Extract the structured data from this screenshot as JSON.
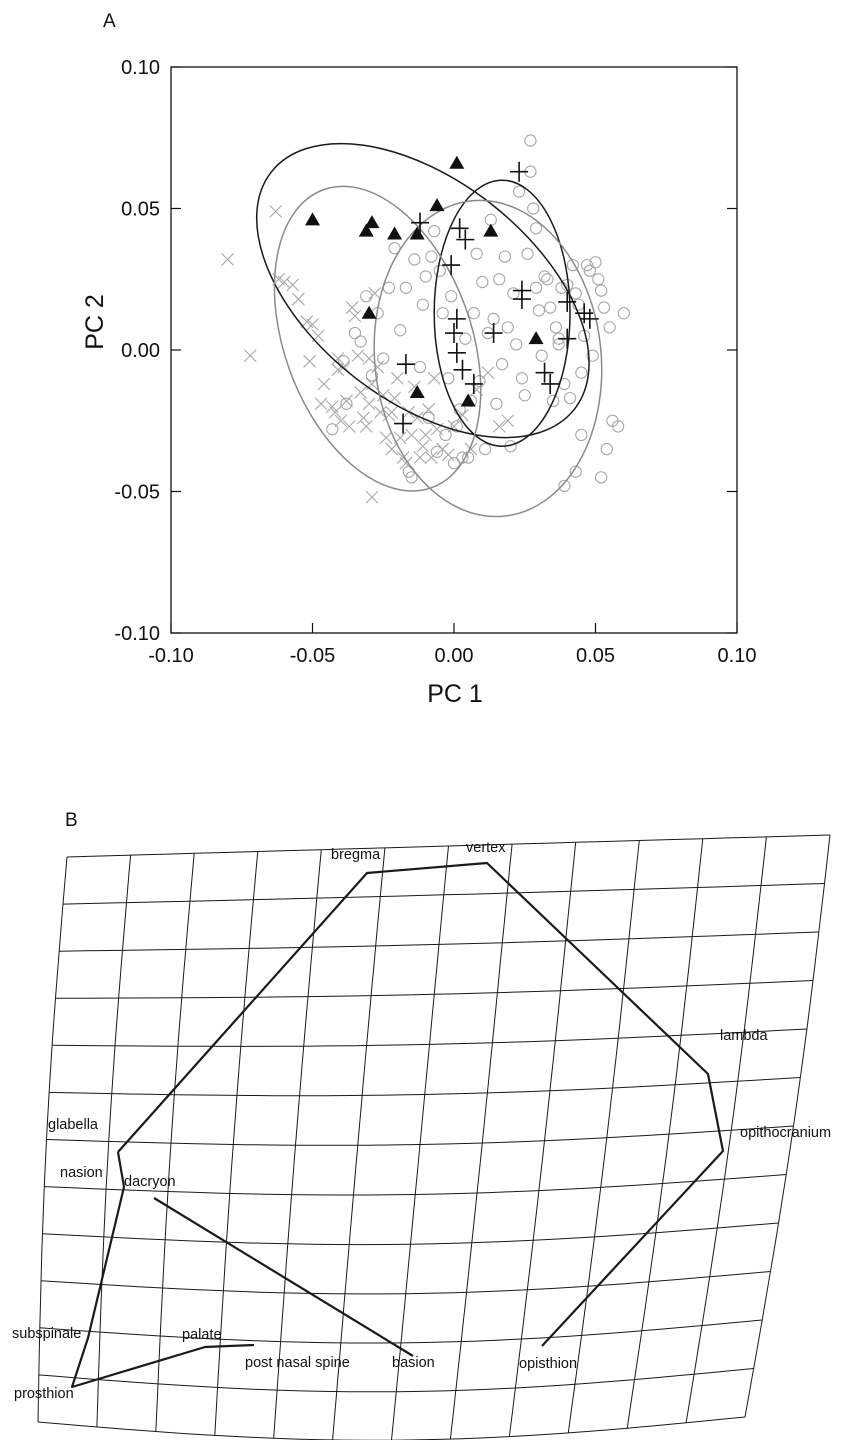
{
  "chart_data": {
    "type": "scatter",
    "panel_label": "A",
    "xlabel": "PC 1",
    "ylabel": "PC 2",
    "xlim": [
      -0.1,
      0.1
    ],
    "ylim": [
      -0.1,
      0.1
    ],
    "xticks": [
      "-0.10",
      "-0.05",
      "0.00",
      "0.05",
      "0.10"
    ],
    "yticks": [
      "0.10",
      "0.05",
      "0.00",
      "-0.05",
      "-0.10"
    ],
    "series": [
      {
        "marker": "cross-x",
        "color": "#a8a8a8",
        "points": [
          [
            -0.08,
            0.032
          ],
          [
            -0.072,
            -0.002
          ],
          [
            -0.063,
            0.049
          ],
          [
            -0.062,
            0.025
          ],
          [
            -0.06,
            0.024
          ],
          [
            -0.057,
            0.023
          ],
          [
            -0.055,
            0.018
          ],
          [
            -0.052,
            0.01
          ],
          [
            -0.05,
            0.009
          ],
          [
            -0.051,
            -0.004
          ],
          [
            -0.048,
            0.005
          ],
          [
            -0.047,
            -0.019
          ],
          [
            -0.046,
            -0.012
          ],
          [
            -0.043,
            -0.02
          ],
          [
            -0.042,
            -0.022
          ],
          [
            -0.041,
            -0.007
          ],
          [
            -0.04,
            -0.025
          ],
          [
            -0.039,
            -0.006
          ],
          [
            -0.038,
            -0.018
          ],
          [
            -0.037,
            -0.027
          ],
          [
            -0.036,
            0.015
          ],
          [
            -0.035,
            0.012
          ],
          [
            -0.034,
            -0.002
          ],
          [
            -0.033,
            -0.015
          ],
          [
            -0.032,
            -0.024
          ],
          [
            -0.031,
            -0.027
          ],
          [
            -0.03,
            -0.019
          ],
          [
            -0.029,
            -0.012
          ],
          [
            -0.028,
            0.02
          ],
          [
            -0.027,
            -0.006
          ],
          [
            -0.026,
            -0.022
          ],
          [
            -0.025,
            -0.016
          ],
          [
            -0.024,
            -0.031
          ],
          [
            -0.023,
            -0.023
          ],
          [
            -0.022,
            -0.035
          ],
          [
            -0.021,
            -0.017
          ],
          [
            -0.02,
            -0.01
          ],
          [
            -0.019,
            -0.031
          ],
          [
            -0.018,
            -0.038
          ],
          [
            -0.017,
            -0.04
          ],
          [
            -0.016,
            -0.022
          ],
          [
            -0.015,
            -0.03
          ],
          [
            -0.014,
            -0.013
          ],
          [
            -0.013,
            -0.024
          ],
          [
            -0.012,
            -0.038
          ],
          [
            -0.011,
            -0.034
          ],
          [
            -0.01,
            -0.03
          ],
          [
            -0.009,
            -0.021
          ],
          [
            -0.008,
            -0.038
          ],
          [
            -0.007,
            -0.01
          ],
          [
            -0.006,
            -0.028
          ],
          [
            -0.004,
            -0.035
          ],
          [
            -0.002,
            -0.037
          ],
          [
            0.0,
            -0.027
          ],
          [
            0.003,
            -0.023
          ],
          [
            0.006,
            -0.035
          ],
          [
            0.008,
            -0.014
          ],
          [
            0.012,
            -0.008
          ],
          [
            0.016,
            -0.027
          ],
          [
            0.019,
            -0.025
          ],
          [
            -0.029,
            -0.052
          ],
          [
            -0.022,
            -0.022
          ],
          [
            -0.03,
            -0.003
          ],
          [
            -0.041,
            -0.003
          ]
        ]
      },
      {
        "marker": "open-circle",
        "color": "#a8a8a8",
        "points": [
          [
            -0.043,
            -0.028
          ],
          [
            -0.038,
            -0.019
          ],
          [
            -0.035,
            0.006
          ],
          [
            -0.033,
            0.003
          ],
          [
            -0.031,
            0.019
          ],
          [
            -0.029,
            -0.009
          ],
          [
            -0.027,
            0.013
          ],
          [
            -0.025,
            -0.003
          ],
          [
            -0.023,
            0.022
          ],
          [
            -0.021,
            0.036
          ],
          [
            -0.019,
            0.007
          ],
          [
            -0.017,
            0.022
          ],
          [
            -0.016,
            -0.043
          ],
          [
            -0.015,
            -0.045
          ],
          [
            -0.014,
            0.032
          ],
          [
            -0.012,
            -0.006
          ],
          [
            -0.011,
            0.016
          ],
          [
            -0.01,
            0.026
          ],
          [
            -0.009,
            -0.024
          ],
          [
            -0.008,
            0.033
          ],
          [
            -0.007,
            0.042
          ],
          [
            -0.006,
            -0.036
          ],
          [
            -0.005,
            0.028
          ],
          [
            -0.004,
            0.013
          ],
          [
            -0.003,
            -0.03
          ],
          [
            -0.002,
            -0.01
          ],
          [
            -0.001,
            0.019
          ],
          [
            0.0,
            -0.04
          ],
          [
            0.001,
            -0.027
          ],
          [
            0.002,
            -0.021
          ],
          [
            0.003,
            -0.038
          ],
          [
            0.004,
            0.004
          ],
          [
            0.005,
            -0.038
          ],
          [
            0.006,
            -0.018
          ],
          [
            0.007,
            0.013
          ],
          [
            0.008,
            0.034
          ],
          [
            0.009,
            -0.011
          ],
          [
            0.01,
            0.024
          ],
          [
            0.011,
            -0.035
          ],
          [
            0.012,
            0.006
          ],
          [
            0.013,
            0.046
          ],
          [
            0.014,
            0.011
          ],
          [
            0.015,
            -0.019
          ],
          [
            0.016,
            0.025
          ],
          [
            0.017,
            -0.005
          ],
          [
            0.018,
            0.033
          ],
          [
            0.019,
            0.008
          ],
          [
            0.02,
            -0.034
          ],
          [
            0.021,
            0.02
          ],
          [
            0.022,
            0.002
          ],
          [
            0.023,
            0.056
          ],
          [
            0.024,
            -0.01
          ],
          [
            0.025,
            -0.016
          ],
          [
            0.026,
            0.034
          ],
          [
            0.027,
            0.074
          ],
          [
            0.027,
            0.063
          ],
          [
            0.028,
            0.05
          ],
          [
            0.029,
            0.043
          ],
          [
            0.03,
            0.014
          ],
          [
            0.031,
            -0.002
          ],
          [
            0.032,
            0.026
          ],
          [
            0.033,
            0.025
          ],
          [
            0.034,
            0.015
          ],
          [
            0.035,
            -0.018
          ],
          [
            0.036,
            0.008
          ],
          [
            0.037,
            0.002
          ],
          [
            0.038,
            0.022
          ],
          [
            0.039,
            -0.012
          ],
          [
            0.04,
            0.023
          ],
          [
            0.041,
            -0.017
          ],
          [
            0.042,
            0.03
          ],
          [
            0.043,
            0.02
          ],
          [
            0.044,
            0.016
          ],
          [
            0.045,
            -0.008
          ],
          [
            0.046,
            0.005
          ],
          [
            0.047,
            0.03
          ],
          [
            0.048,
            0.028
          ],
          [
            0.049,
            -0.002
          ],
          [
            0.05,
            0.031
          ],
          [
            0.051,
            0.025
          ],
          [
            0.052,
            0.021
          ],
          [
            0.053,
            0.015
          ],
          [
            0.054,
            -0.035
          ],
          [
            0.055,
            0.008
          ],
          [
            0.056,
            -0.025
          ],
          [
            0.058,
            -0.027
          ],
          [
            0.06,
            0.013
          ],
          [
            0.039,
            -0.048
          ],
          [
            0.043,
            -0.043
          ],
          [
            0.052,
            -0.045
          ],
          [
            0.045,
            -0.03
          ],
          [
            -0.039,
            -0.004
          ],
          [
            0.029,
            0.022
          ],
          [
            0.037,
            0.004
          ]
        ]
      },
      {
        "marker": "filled-triangle",
        "color": "#111111",
        "points": [
          [
            -0.05,
            0.046
          ],
          [
            -0.031,
            0.042
          ],
          [
            -0.029,
            0.045
          ],
          [
            -0.021,
            0.041
          ],
          [
            -0.013,
            0.041
          ],
          [
            -0.006,
            0.051
          ],
          [
            0.001,
            0.066
          ],
          [
            0.013,
            0.042
          ],
          [
            -0.03,
            0.013
          ],
          [
            -0.013,
            -0.015
          ],
          [
            0.005,
            -0.018
          ],
          [
            0.029,
            0.004
          ]
        ]
      },
      {
        "marker": "plus",
        "color": "#111111",
        "points": [
          [
            -0.012,
            0.045
          ],
          [
            0.002,
            0.043
          ],
          [
            0.004,
            0.039
          ],
          [
            -0.001,
            0.03
          ],
          [
            0.023,
            0.063
          ],
          [
            0.024,
            0.021
          ],
          [
            0.024,
            0.018
          ],
          [
            0.001,
            0.011
          ],
          [
            0.0,
            0.006
          ],
          [
            0.014,
            0.006
          ],
          [
            -0.017,
            -0.005
          ],
          [
            0.001,
            -0.001
          ],
          [
            0.003,
            -0.007
          ],
          [
            0.007,
            -0.012
          ],
          [
            0.032,
            -0.008
          ],
          [
            0.034,
            -0.012
          ],
          [
            -0.018,
            -0.026
          ],
          [
            0.04,
            0.017
          ],
          [
            0.046,
            0.013
          ],
          [
            0.048,
            0.011
          ],
          [
            0.04,
            0.004
          ]
        ]
      }
    ],
    "ellipses": [
      {
        "color": "#1a1a1a",
        "center": [
          -0.011,
          0.021
        ],
        "rx": 0.039,
        "ry": 0.068,
        "angle_deg": -52
      },
      {
        "color": "#1a1a1a",
        "center": [
          0.017,
          0.013
        ],
        "rx": 0.024,
        "ry": 0.047,
        "angle_deg": 0
      },
      {
        "color": "#8a8a8a",
        "center": [
          -0.027,
          0.004
        ],
        "rx": 0.033,
        "ry": 0.056,
        "angle_deg": -20
      },
      {
        "color": "#8a8a8a",
        "center": [
          0.012,
          -0.003
        ],
        "rx": 0.04,
        "ry": 0.056,
        "angle_deg": -6
      }
    ]
  },
  "deformation": {
    "panel_label": "B",
    "landmarks": [
      {
        "name": "bregma"
      },
      {
        "name": "vertex"
      },
      {
        "name": "lambda"
      },
      {
        "name": "glabella"
      },
      {
        "name": "opithocranium"
      },
      {
        "name": "nasion"
      },
      {
        "name": "dacryon"
      },
      {
        "name": "subspinale"
      },
      {
        "name": "palate"
      },
      {
        "name": "post nasal spine"
      },
      {
        "name": "basion"
      },
      {
        "name": "opisthion"
      },
      {
        "name": "prosthion"
      }
    ]
  }
}
